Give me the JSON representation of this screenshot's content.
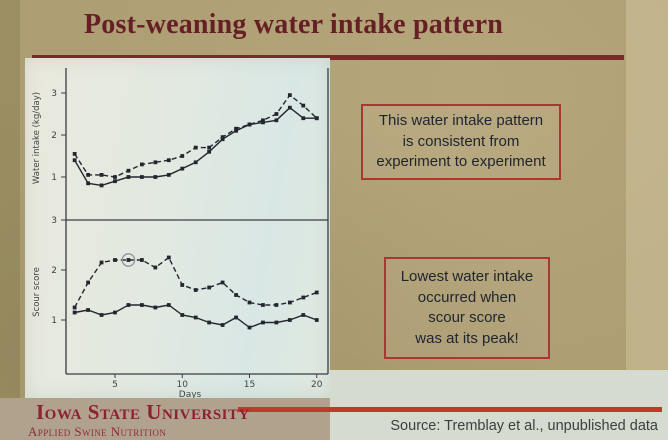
{
  "title": "Post-weaning water intake pattern",
  "notes": {
    "box1": {
      "lines": [
        "This water intake pattern",
        "is consistent from",
        "experiment to experiment"
      ]
    },
    "box2": {
      "lines": [
        "Lowest water intake",
        "occurred when",
        "scour score",
        "was at its peak!"
      ]
    }
  },
  "footer": {
    "org": "Iowa State University",
    "dept": "Applied Swine Nutrition",
    "source": "Source: Tremblay et al., unpublished data"
  },
  "colors": {
    "slide-bg": "#ad9e73",
    "title-color": "#661f24",
    "rule-dark": "#7b2a28",
    "box-border": "#a93832",
    "box-text": "#1e2430",
    "brand-red": "#8c2133",
    "rule-bright": "#c03a2b",
    "source-text": "#38413f",
    "footer-left-bg": "#b1a28e",
    "footer-right-bg": "#d6dbd0",
    "chart-ink": "#23262e",
    "axis-ink": "#3a3d42",
    "axis-text": "#41443f"
  },
  "chart_data": [
    {
      "type": "line",
      "title": "",
      "xlabel": "",
      "ylabel": "Water intake (kg/day)",
      "x": [
        2,
        3,
        4,
        5,
        6,
        7,
        8,
        9,
        10,
        11,
        12,
        13,
        14,
        15,
        16,
        17,
        18,
        19,
        20
      ],
      "series": [
        {
          "name": "dashed-line-series",
          "style": "dashed",
          "marker": "square",
          "values": [
            1.55,
            1.05,
            1.05,
            1.0,
            1.15,
            1.3,
            1.35,
            1.4,
            1.5,
            1.7,
            1.7,
            1.95,
            2.15,
            2.25,
            2.35,
            2.5,
            2.95,
            2.7,
            2.4
          ]
        },
        {
          "name": "solid-line-series",
          "style": "solid",
          "marker": "square",
          "values": [
            1.4,
            0.85,
            0.8,
            0.9,
            1.0,
            1.0,
            1.0,
            1.05,
            1.2,
            1.35,
            1.6,
            1.9,
            2.1,
            2.25,
            2.3,
            2.35,
            2.65,
            2.4,
            2.4
          ]
        }
      ],
      "yticks": [
        1,
        2,
        3
      ],
      "xticks": [
        5,
        10,
        15,
        20
      ],
      "ylim": [
        0,
        3.4
      ],
      "xlim": [
        1,
        21
      ],
      "legend": "none",
      "grid": false
    },
    {
      "type": "line",
      "title": "",
      "xlabel": "Days",
      "ylabel": "Scour score",
      "x": [
        2,
        3,
        4,
        5,
        6,
        7,
        8,
        9,
        10,
        11,
        12,
        13,
        14,
        15,
        16,
        17,
        18,
        19,
        20
      ],
      "series": [
        {
          "name": "dashed-line-series",
          "style": "dashed",
          "marker": "square",
          "values": [
            1.25,
            1.75,
            2.15,
            2.2,
            2.2,
            2.2,
            2.05,
            2.25,
            1.7,
            1.6,
            1.65,
            1.75,
            1.5,
            1.35,
            1.3,
            1.3,
            1.35,
            1.45,
            1.55
          ]
        },
        {
          "name": "solid-line-series",
          "style": "solid",
          "marker": "square",
          "values": [
            1.15,
            1.2,
            1.1,
            1.15,
            1.3,
            1.3,
            1.25,
            1.3,
            1.1,
            1.05,
            0.95,
            0.9,
            1.05,
            0.85,
            0.95,
            0.95,
            1.0,
            1.1,
            1.0
          ]
        }
      ],
      "yticks": [
        1,
        2,
        3
      ],
      "xticks": [
        5,
        10,
        15,
        20
      ],
      "ylim": [
        0,
        3
      ],
      "xlim": [
        1,
        21
      ],
      "legend": "none",
      "grid": false,
      "annotations": [
        {
          "shape": "circle",
          "series_index": 0,
          "x": 6,
          "note": "circled data point on dashed series"
        }
      ]
    }
  ]
}
